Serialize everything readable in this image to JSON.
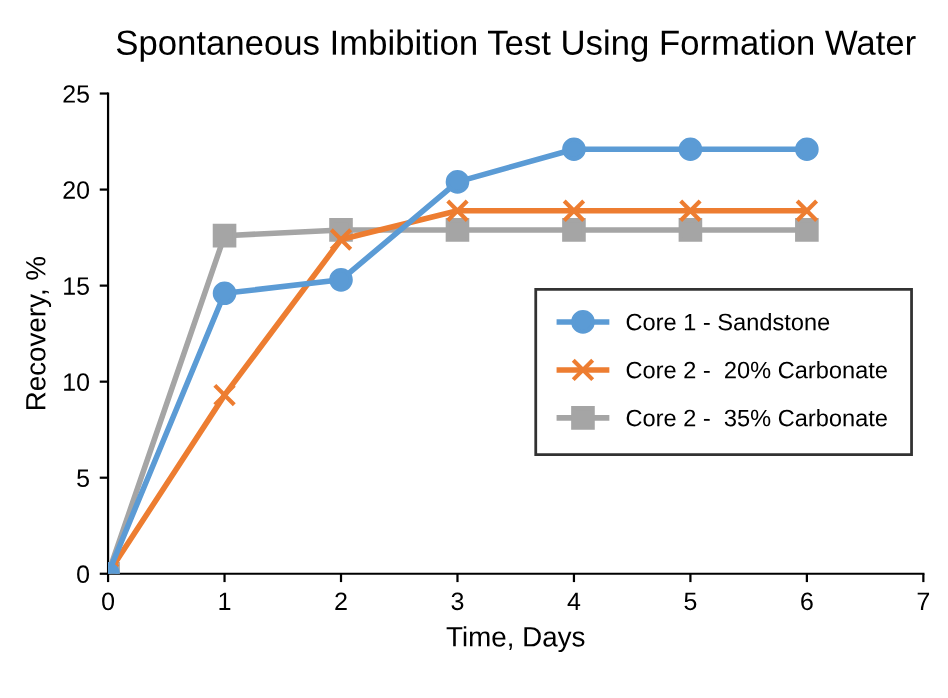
{
  "chart_data": {
    "type": "line",
    "title": "Spontaneous Imbibition Test Using Formation Water",
    "xlabel": "Time, Days",
    "ylabel": "Recovery, %",
    "x": [
      0,
      1,
      2,
      3,
      4,
      5,
      6
    ],
    "series": [
      {
        "name": "Core 1 - Sandstone",
        "color": "#5b9bd5",
        "marker": "circle",
        "values": [
          0,
          14.6,
          15.3,
          20.4,
          22.1,
          22.1,
          22.1
        ]
      },
      {
        "name": "Core 2 -  20% Carbonate",
        "color": "#ed7d31",
        "marker": "cross",
        "values": [
          0,
          9.3,
          17.4,
          18.9,
          18.9,
          18.9,
          18.9
        ]
      },
      {
        "name": "Core 2 -  35% Carbonate",
        "color": "#a5a5a5",
        "marker": "square",
        "values": [
          0,
          17.6,
          17.9,
          17.9,
          17.9,
          17.9,
          17.9
        ]
      }
    ],
    "xlim": [
      0,
      7
    ],
    "xticks": [
      0,
      1,
      2,
      3,
      4,
      5,
      6,
      7
    ],
    "ylim": [
      0,
      25
    ],
    "yticks": [
      0,
      5,
      10,
      15,
      20,
      25
    ],
    "grid": false,
    "legend": "right"
  }
}
